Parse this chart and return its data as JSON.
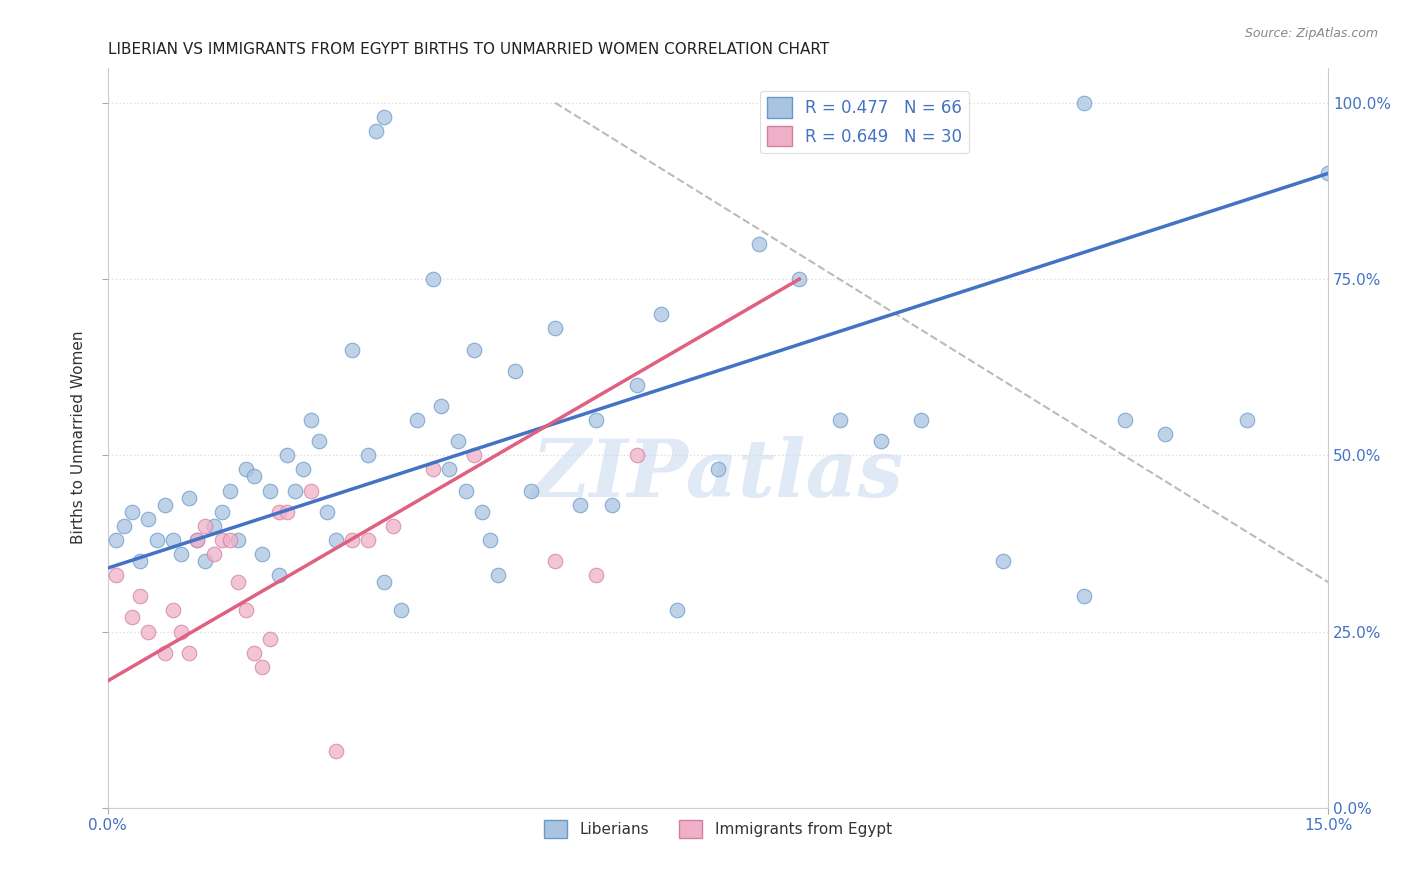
{
  "title": "LIBERIAN VS IMMIGRANTS FROM EGYPT BIRTHS TO UNMARRIED WOMEN CORRELATION CHART",
  "source": "Source: ZipAtlas.com",
  "xlim": [
    0.0,
    0.15
  ],
  "ylim": [
    0.0,
    1.05
  ],
  "ylabel_ticks": [
    0.0,
    0.25,
    0.5,
    0.75,
    1.0
  ],
  "ylabel_labels": [
    "0.0%",
    "25.0%",
    "50.0%",
    "75.0%",
    "100.0%"
  ],
  "xtick_positions": [
    0.0,
    0.15
  ],
  "xtick_labels": [
    "0.0%",
    "15.0%"
  ],
  "liberian_color": "#aac4e0",
  "liberian_edge": "#6699cc",
  "egypt_color": "#f0b0c8",
  "egypt_edge": "#d080a0",
  "blue_line_color": "#4472c4",
  "pink_line_color": "#e06080",
  "gray_line_color": "#bbbbbb",
  "watermark": "ZIPatlas",
  "watermark_color": "#c8d8f0",
  "liberian_points": [
    [
      0.001,
      0.38
    ],
    [
      0.002,
      0.4
    ],
    [
      0.003,
      0.42
    ],
    [
      0.004,
      0.35
    ],
    [
      0.005,
      0.41
    ],
    [
      0.006,
      0.38
    ],
    [
      0.007,
      0.43
    ],
    [
      0.008,
      0.38
    ],
    [
      0.009,
      0.36
    ],
    [
      0.01,
      0.44
    ],
    [
      0.011,
      0.38
    ],
    [
      0.012,
      0.35
    ],
    [
      0.013,
      0.4
    ],
    [
      0.014,
      0.42
    ],
    [
      0.015,
      0.45
    ],
    [
      0.016,
      0.38
    ],
    [
      0.017,
      0.48
    ],
    [
      0.018,
      0.47
    ],
    [
      0.019,
      0.36
    ],
    [
      0.02,
      0.45
    ],
    [
      0.021,
      0.33
    ],
    [
      0.022,
      0.5
    ],
    [
      0.023,
      0.45
    ],
    [
      0.024,
      0.48
    ],
    [
      0.025,
      0.55
    ],
    [
      0.026,
      0.52
    ],
    [
      0.027,
      0.42
    ],
    [
      0.028,
      0.38
    ],
    [
      0.03,
      0.65
    ],
    [
      0.032,
      0.5
    ],
    [
      0.034,
      0.32
    ],
    [
      0.036,
      0.28
    ],
    [
      0.038,
      0.55
    ],
    [
      0.04,
      0.75
    ],
    [
      0.041,
      0.57
    ],
    [
      0.042,
      0.48
    ],
    [
      0.043,
      0.52
    ],
    [
      0.044,
      0.45
    ],
    [
      0.045,
      0.65
    ],
    [
      0.046,
      0.42
    ],
    [
      0.047,
      0.38
    ],
    [
      0.048,
      0.33
    ],
    [
      0.05,
      0.62
    ],
    [
      0.052,
      0.45
    ],
    [
      0.055,
      0.68
    ],
    [
      0.058,
      0.43
    ],
    [
      0.06,
      0.55
    ],
    [
      0.062,
      0.43
    ],
    [
      0.065,
      0.6
    ],
    [
      0.068,
      0.7
    ],
    [
      0.07,
      0.28
    ],
    [
      0.075,
      0.48
    ],
    [
      0.08,
      0.8
    ],
    [
      0.085,
      0.75
    ],
    [
      0.09,
      0.55
    ],
    [
      0.095,
      0.52
    ],
    [
      0.1,
      0.55
    ],
    [
      0.11,
      0.35
    ],
    [
      0.12,
      0.3
    ],
    [
      0.13,
      0.53
    ],
    [
      0.14,
      0.55
    ],
    [
      0.033,
      0.96
    ],
    [
      0.034,
      0.98
    ],
    [
      0.12,
      1.0
    ],
    [
      0.15,
      0.9
    ],
    [
      0.125,
      0.55
    ]
  ],
  "egypt_points": [
    [
      0.001,
      0.33
    ],
    [
      0.003,
      0.27
    ],
    [
      0.004,
      0.3
    ],
    [
      0.005,
      0.25
    ],
    [
      0.007,
      0.22
    ],
    [
      0.008,
      0.28
    ],
    [
      0.009,
      0.25
    ],
    [
      0.01,
      0.22
    ],
    [
      0.011,
      0.38
    ],
    [
      0.012,
      0.4
    ],
    [
      0.013,
      0.36
    ],
    [
      0.014,
      0.38
    ],
    [
      0.015,
      0.38
    ],
    [
      0.016,
      0.32
    ],
    [
      0.017,
      0.28
    ],
    [
      0.018,
      0.22
    ],
    [
      0.019,
      0.2
    ],
    [
      0.02,
      0.24
    ],
    [
      0.021,
      0.42
    ],
    [
      0.022,
      0.42
    ],
    [
      0.025,
      0.45
    ],
    [
      0.028,
      0.08
    ],
    [
      0.03,
      0.38
    ],
    [
      0.032,
      0.38
    ],
    [
      0.035,
      0.4
    ],
    [
      0.04,
      0.48
    ],
    [
      0.045,
      0.5
    ],
    [
      0.055,
      0.35
    ],
    [
      0.06,
      0.33
    ],
    [
      0.065,
      0.5
    ]
  ],
  "blue_line_x": [
    0.0,
    0.15
  ],
  "blue_line_y": [
    0.34,
    0.9
  ],
  "pink_line_x": [
    0.0,
    0.085
  ],
  "pink_line_y": [
    0.18,
    0.75
  ],
  "gray_line_x": [
    0.055,
    0.15
  ],
  "gray_line_y": [
    1.0,
    0.32
  ]
}
